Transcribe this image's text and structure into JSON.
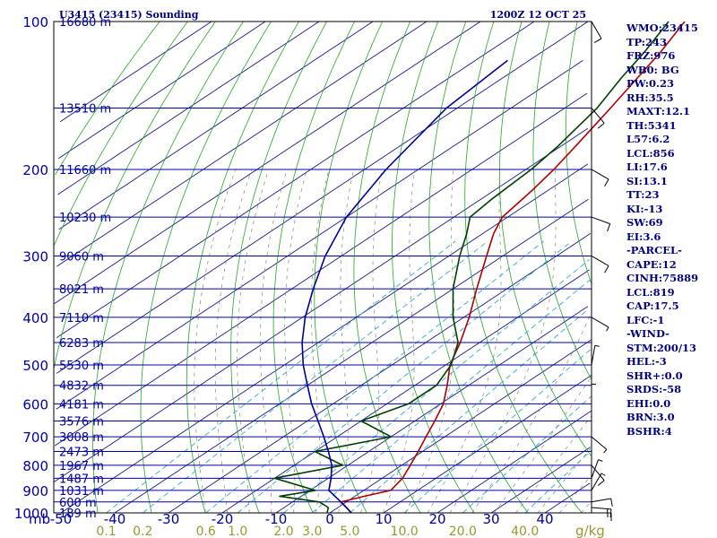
{
  "chart_data": {
    "type": "skew-t log-p sounding",
    "title": "U3415 (23415) Sounding",
    "valid_time": "1200Z 12 OCT 25",
    "y_axis": {
      "label": "mb",
      "scale": "log-pressure",
      "range_mb": [
        1000,
        100
      ],
      "tick_labels": [
        100,
        200,
        300,
        400,
        500,
        600,
        700,
        800,
        900,
        1000
      ]
    },
    "x_axis": {
      "label": "",
      "temperature_ticks": [
        -50,
        -40,
        -30,
        -20,
        -10,
        0,
        10,
        20,
        30,
        40
      ],
      "mixing_ratio_labels": [
        "0.1",
        "0.2",
        "0.6",
        "1.0",
        "2.0",
        "3.0",
        "5.0",
        "10.0",
        "20.0",
        "40.0"
      ],
      "mixing_ratio_unit": "g/kg"
    },
    "isotherm_spacing_c": 10,
    "height_labels": [
      {
        "p": 100,
        "label": "16680 m"
      },
      {
        "p": 150,
        "label": "13510 m"
      },
      {
        "p": 200,
        "label": "11660 m"
      },
      {
        "p": 250,
        "label": "10230 m"
      },
      {
        "p": 300,
        "label": "9060 m"
      },
      {
        "p": 350,
        "label": "8021 m"
      },
      {
        "p": 400,
        "label": "7110 m"
      },
      {
        "p": 450,
        "label": "6283 m"
      },
      {
        "p": 500,
        "label": "5530 m"
      },
      {
        "p": 550,
        "label": "4832 m"
      },
      {
        "p": 600,
        "label": "4181 m"
      },
      {
        "p": 650,
        "label": "3576 m"
      },
      {
        "p": 700,
        "label": "3008 m"
      },
      {
        "p": 750,
        "label": "2473 m"
      },
      {
        "p": 800,
        "label": "1967 m"
      },
      {
        "p": 850,
        "label": "1487 m"
      },
      {
        "p": 900,
        "label": "1031 m"
      },
      {
        "p": 950,
        "label": "600 m"
      },
      {
        "p": 1000,
        "label": "189 m"
      }
    ],
    "series": [
      {
        "name": "Temperature",
        "color": "#b00000",
        "points": [
          {
            "p": 1000,
            "t": 4.0
          },
          {
            "p": 975,
            "t": 1.6
          },
          {
            "p": 950,
            "t": -1.0
          },
          {
            "p": 925,
            "t": 1.8
          },
          {
            "p": 900,
            "t": 5.0
          },
          {
            "p": 850,
            "t": 3.8
          },
          {
            "p": 800,
            "t": 1.6
          },
          {
            "p": 750,
            "t": -0.8
          },
          {
            "p": 700,
            "t": -3.5
          },
          {
            "p": 650,
            "t": -6.3
          },
          {
            "p": 600,
            "t": -9.5
          },
          {
            "p": 550,
            "t": -14.0
          },
          {
            "p": 500,
            "t": -19.2
          },
          {
            "p": 450,
            "t": -23.6
          },
          {
            "p": 400,
            "t": -29.0
          },
          {
            "p": 350,
            "t": -35.6
          },
          {
            "p": 300,
            "t": -43.0
          },
          {
            "p": 270,
            "t": -48.0
          },
          {
            "p": 250,
            "t": -51.0
          },
          {
            "p": 220,
            "t": -53.0
          },
          {
            "p": 200,
            "t": -54.8
          },
          {
            "p": 180,
            "t": -57.2
          },
          {
            "p": 150,
            "t": -61.5
          },
          {
            "p": 130,
            "t": -65.0
          },
          {
            "p": 115,
            "t": -68.0
          },
          {
            "p": 100,
            "t": -72.0
          }
        ]
      },
      {
        "name": "Dewpoint",
        "color": "#004000",
        "points": [
          {
            "p": 1000,
            "t": -0.5
          },
          {
            "p": 975,
            "t": -1.8
          },
          {
            "p": 950,
            "t": -5.0
          },
          {
            "p": 925,
            "t": -14.0
          },
          {
            "p": 900,
            "t": -9.0
          },
          {
            "p": 850,
            "t": -20.0
          },
          {
            "p": 800,
            "t": -11.0
          },
          {
            "p": 750,
            "t": -20.0
          },
          {
            "p": 700,
            "t": -10.0
          },
          {
            "p": 650,
            "t": -20.0
          },
          {
            "p": 600,
            "t": -16.0
          },
          {
            "p": 550,
            "t": -16.0
          },
          {
            "p": 500,
            "t": -19.0
          },
          {
            "p": 450,
            "t": -24.0
          },
          {
            "p": 400,
            "t": -32.0
          },
          {
            "p": 350,
            "t": -40.0
          },
          {
            "p": 300,
            "t": -48.0
          },
          {
            "p": 270,
            "t": -53.0
          },
          {
            "p": 250,
            "t": -57.0
          },
          {
            "p": 230,
            "t": -58.0
          },
          {
            "p": 200,
            "t": -59.0
          },
          {
            "p": 180,
            "t": -60.5
          },
          {
            "p": 150,
            "t": -64.0
          },
          {
            "p": 130,
            "t": -68.0
          },
          {
            "p": 115,
            "t": -71.0
          },
          {
            "p": 100,
            "t": -75.0
          }
        ]
      },
      {
        "name": "Parcel",
        "color": "#000099",
        "points": [
          {
            "p": 1000,
            "t": 4.0
          },
          {
            "p": 950,
            "t": -1.0
          },
          {
            "p": 900,
            "t": -6.5
          },
          {
            "p": 850,
            "t": -9.5
          },
          {
            "p": 800,
            "t": -13.0
          },
          {
            "p": 750,
            "t": -17.5
          },
          {
            "p": 700,
            "t": -22.5
          },
          {
            "p": 650,
            "t": -28.0
          },
          {
            "p": 600,
            "t": -34.0
          },
          {
            "p": 550,
            "t": -40.0
          },
          {
            "p": 500,
            "t": -46.5
          },
          {
            "p": 450,
            "t": -53.0
          },
          {
            "p": 400,
            "t": -59.5
          },
          {
            "p": 350,
            "t": -66.0
          },
          {
            "p": 300,
            "t": -73.0
          },
          {
            "p": 250,
            "t": -80.0
          },
          {
            "p": 200,
            "t": -86.0
          },
          {
            "p": 150,
            "t": -92.0
          },
          {
            "p": 120,
            "t": -94.0
          }
        ]
      }
    ],
    "wind_barbs": [
      {
        "p": 1000,
        "dir": 270,
        "kt": 15
      },
      {
        "p": 975,
        "dir": 275,
        "kt": 15
      },
      {
        "p": 950,
        "dir": 260,
        "kt": 10
      },
      {
        "p": 900,
        "dir": 210,
        "kt": 5
      },
      {
        "p": 850,
        "dir": 200,
        "kt": 5
      },
      {
        "p": 800,
        "dir": 320,
        "kt": 10
      },
      {
        "p": 700,
        "dir": 310,
        "kt": 5
      },
      {
        "p": 600,
        "dir": 180,
        "kt": 5
      },
      {
        "p": 500,
        "dir": 190,
        "kt": 5
      },
      {
        "p": 400,
        "dir": 300,
        "kt": 5
      },
      {
        "p": 300,
        "dir": 300,
        "kt": 10
      },
      {
        "p": 250,
        "dir": 290,
        "kt": 10
      },
      {
        "p": 200,
        "dir": 300,
        "kt": 10
      },
      {
        "p": 150,
        "dir": 320,
        "kt": 10
      },
      {
        "p": 100,
        "dir": 330,
        "kt": 10
      }
    ],
    "indices": [
      "WMO:23415",
      "TP:243",
      "FRZ:976",
      "WB0: BG",
      "PW:0.23",
      "RH:35.5",
      "MAXT:12.1",
      "TH:5341",
      "L57:6.2",
      "LCL:856",
      "LI:17.6",
      "SI:13.1",
      "TT:23",
      "KI:-13",
      "SW:69",
      "EI:3.6",
      "-PARCEL-",
      "CAPE:12",
      "CINH:75889",
      "LCL:819",
      "CAP:17.5",
      "LFC:-1",
      "-WIND-",
      "STM:200/13",
      "HEL:-3",
      "SHR+:0.0",
      "SRDS:-58",
      "EHI:0.0",
      "BRN:3.0",
      "BSHR:4"
    ],
    "colors": {
      "isobar": "#0000a0",
      "isotherm": "#1a1a8c",
      "dry_adiabat": "#22aa22",
      "moist_adiabat": "#8a8a6a",
      "mixing_ratio": "#33aacc",
      "axis_text": "#0000a0",
      "mixing_text": "#999933",
      "index_text": "#000080",
      "frame": "#000000"
    }
  }
}
